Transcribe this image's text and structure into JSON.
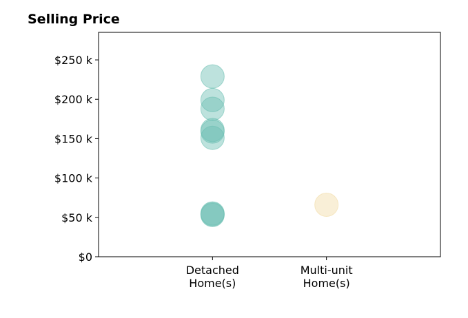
{
  "chart_data": {
    "type": "scatter",
    "title": "Selling Price",
    "xlabel": "",
    "ylabel": "",
    "categories": [
      {
        "lines": [
          "Detached",
          "Home(s)"
        ]
      },
      {
        "lines": [
          "Multi-unit",
          "Home(s)"
        ]
      }
    ],
    "xlim": [
      0,
      3
    ],
    "ylim": [
      0,
      285
    ],
    "yticks": [
      {
        "value": 0,
        "label": "$0"
      },
      {
        "value": 50,
        "label": "$50 k"
      },
      {
        "value": 100,
        "label": "$100 k"
      },
      {
        "value": 150,
        "label": "$150 k"
      },
      {
        "value": 200,
        "label": "$200 k"
      },
      {
        "value": 250,
        "label": "$250 k"
      }
    ],
    "grid": false,
    "series": [
      {
        "color": "#6dbfb3",
        "category_index": 0,
        "points": [
          {
            "x": 1,
            "y": 229
          },
          {
            "x": 1,
            "y": 199
          },
          {
            "x": 1,
            "y": 188
          },
          {
            "x": 1,
            "y": 161
          },
          {
            "x": 1,
            "y": 159
          },
          {
            "x": 1,
            "y": 151
          },
          {
            "x": 1,
            "y": 55
          },
          {
            "x": 1,
            "y": 54
          },
          {
            "x": 1,
            "y": 53
          }
        ]
      },
      {
        "color": "#f2dca6",
        "category_index": 1,
        "points": [
          {
            "x": 2,
            "y": 66
          }
        ]
      }
    ]
  }
}
